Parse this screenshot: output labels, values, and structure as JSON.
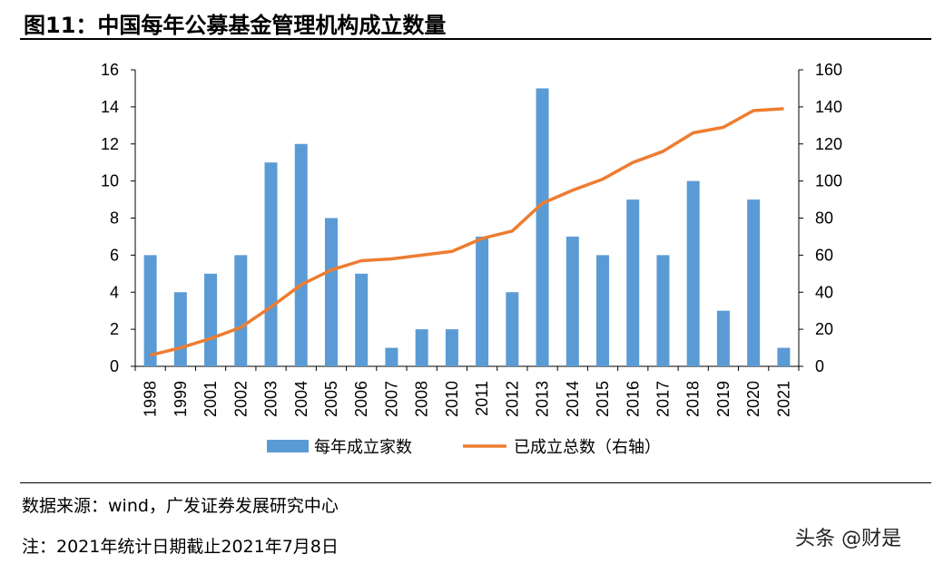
{
  "title": "图11：中国每年公募基金管理机构成立数量",
  "source": "数据来源：wind，广发证券发展研究中心",
  "note": "注：2021年统计日期截止2021年7月8日",
  "watermark": "头条 @财是",
  "chart_data": {
    "type": "bar",
    "categories": [
      "1998",
      "1999",
      "2001",
      "2002",
      "2003",
      "2004",
      "2005",
      "2006",
      "2007",
      "2008",
      "2010",
      "2011",
      "2012",
      "2013",
      "2014",
      "2015",
      "2016",
      "2017",
      "2018",
      "2019",
      "2020",
      "2021"
    ],
    "series": [
      {
        "name": "每年成立家数",
        "type": "bar",
        "axis": "left",
        "color": "#5B9BD5",
        "values": [
          6,
          4,
          5,
          6,
          11,
          12,
          8,
          5,
          1,
          2,
          2,
          7,
          4,
          15,
          7,
          6,
          9,
          6,
          10,
          3,
          9,
          1
        ]
      },
      {
        "name": "已成立总数（右轴）",
        "type": "line",
        "axis": "right",
        "color": "#ED7D31",
        "values": [
          6,
          10,
          15,
          21,
          32,
          44,
          52,
          57,
          58,
          60,
          62,
          69,
          73,
          88,
          95,
          101,
          110,
          116,
          126,
          129,
          138,
          139
        ]
      }
    ],
    "ylim_left": [
      0,
      16
    ],
    "yticks_left": [
      0,
      2,
      4,
      6,
      8,
      10,
      12,
      14,
      16
    ],
    "ylim_right": [
      0,
      160
    ],
    "yticks_right": [
      0,
      20,
      40,
      60,
      80,
      100,
      120,
      140,
      160
    ],
    "grid": false,
    "legend_position": "bottom"
  }
}
